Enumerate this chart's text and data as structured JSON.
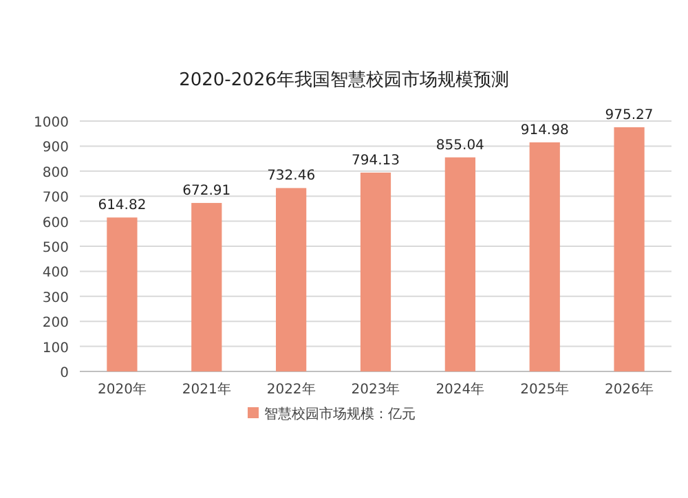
{
  "chart_data": {
    "type": "bar",
    "title": "2020-2026年我国智慧校园市场规模预测",
    "categories": [
      "2020年",
      "2021年",
      "2022年",
      "2023年",
      "2024年",
      "2025年",
      "2026年"
    ],
    "series": [
      {
        "name": "智慧校园市场规模：亿元",
        "color": "#f0937a",
        "values": [
          614.82,
          672.91,
          732.46,
          794.13,
          855.04,
          914.98,
          975.27
        ]
      }
    ],
    "ylim": [
      0,
      1000
    ],
    "yticks": [
      0,
      100,
      200,
      300,
      400,
      500,
      600,
      700,
      800,
      900,
      1000
    ],
    "grid": "y",
    "legend": "bottom",
    "data_labels": true
  }
}
